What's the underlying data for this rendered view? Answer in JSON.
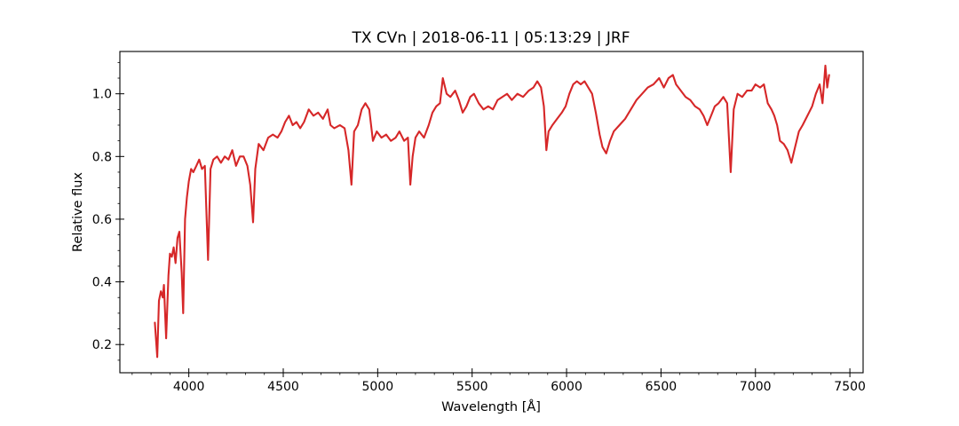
{
  "chart_data": {
    "type": "line",
    "title": "TX CVn | 2018-06-11 | 05:13:29 | JRF",
    "xlabel": "Wavelength [Å]",
    "ylabel": "Relative flux",
    "xlim": [
      3635,
      7570
    ],
    "ylim": [
      0.11,
      1.135
    ],
    "x_ticks": [
      4000,
      4500,
      5000,
      5500,
      6000,
      6500,
      7000,
      7500
    ],
    "y_ticks": [
      0.2,
      0.4,
      0.6,
      0.8,
      1.0
    ],
    "x_tick_labels": [
      "4000",
      "4500",
      "5000",
      "5500",
      "6000",
      "6500",
      "7000",
      "7500"
    ],
    "y_tick_labels": [
      "0.2",
      "0.4",
      "0.6",
      "0.8",
      "1.0"
    ],
    "grid": false,
    "series": [
      {
        "color": "#d62728",
        "points": [
          [
            3820,
            0.27
          ],
          [
            3833,
            0.16
          ],
          [
            3842,
            0.34
          ],
          [
            3852,
            0.37
          ],
          [
            3862,
            0.35
          ],
          [
            3868,
            0.39
          ],
          [
            3880,
            0.22
          ],
          [
            3892,
            0.42
          ],
          [
            3900,
            0.49
          ],
          [
            3910,
            0.48
          ],
          [
            3920,
            0.51
          ],
          [
            3930,
            0.46
          ],
          [
            3940,
            0.54
          ],
          [
            3950,
            0.56
          ],
          [
            3962,
            0.43
          ],
          [
            3970,
            0.3
          ],
          [
            3980,
            0.6
          ],
          [
            3990,
            0.67
          ],
          [
            4000,
            0.72
          ],
          [
            4012,
            0.76
          ],
          [
            4024,
            0.75
          ],
          [
            4040,
            0.77
          ],
          [
            4055,
            0.79
          ],
          [
            4070,
            0.76
          ],
          [
            4085,
            0.77
          ],
          [
            4102,
            0.47
          ],
          [
            4115,
            0.76
          ],
          [
            4130,
            0.79
          ],
          [
            4150,
            0.8
          ],
          [
            4170,
            0.78
          ],
          [
            4190,
            0.8
          ],
          [
            4210,
            0.79
          ],
          [
            4230,
            0.82
          ],
          [
            4250,
            0.77
          ],
          [
            4270,
            0.8
          ],
          [
            4290,
            0.8
          ],
          [
            4310,
            0.77
          ],
          [
            4325,
            0.71
          ],
          [
            4340,
            0.59
          ],
          [
            4352,
            0.76
          ],
          [
            4370,
            0.84
          ],
          [
            4395,
            0.82
          ],
          [
            4420,
            0.86
          ],
          [
            4445,
            0.87
          ],
          [
            4470,
            0.86
          ],
          [
            4490,
            0.88
          ],
          [
            4510,
            0.91
          ],
          [
            4530,
            0.93
          ],
          [
            4550,
            0.9
          ],
          [
            4570,
            0.91
          ],
          [
            4590,
            0.89
          ],
          [
            4610,
            0.91
          ],
          [
            4635,
            0.95
          ],
          [
            4660,
            0.93
          ],
          [
            4685,
            0.94
          ],
          [
            4710,
            0.92
          ],
          [
            4735,
            0.95
          ],
          [
            4750,
            0.9
          ],
          [
            4770,
            0.89
          ],
          [
            4800,
            0.9
          ],
          [
            4825,
            0.89
          ],
          [
            4845,
            0.82
          ],
          [
            4861,
            0.71
          ],
          [
            4875,
            0.88
          ],
          [
            4895,
            0.9
          ],
          [
            4915,
            0.95
          ],
          [
            4935,
            0.97
          ],
          [
            4955,
            0.95
          ],
          [
            4975,
            0.85
          ],
          [
            4995,
            0.88
          ],
          [
            5020,
            0.86
          ],
          [
            5045,
            0.87
          ],
          [
            5070,
            0.85
          ],
          [
            5095,
            0.86
          ],
          [
            5115,
            0.88
          ],
          [
            5140,
            0.85
          ],
          [
            5160,
            0.86
          ],
          [
            5173,
            0.71
          ],
          [
            5185,
            0.8
          ],
          [
            5200,
            0.86
          ],
          [
            5220,
            0.88
          ],
          [
            5245,
            0.86
          ],
          [
            5270,
            0.9
          ],
          [
            5290,
            0.94
          ],
          [
            5310,
            0.96
          ],
          [
            5330,
            0.97
          ],
          [
            5345,
            1.05
          ],
          [
            5365,
            1.0
          ],
          [
            5385,
            0.99
          ],
          [
            5410,
            1.01
          ],
          [
            5430,
            0.98
          ],
          [
            5450,
            0.94
          ],
          [
            5470,
            0.96
          ],
          [
            5490,
            0.99
          ],
          [
            5510,
            1.0
          ],
          [
            5535,
            0.97
          ],
          [
            5560,
            0.95
          ],
          [
            5585,
            0.96
          ],
          [
            5610,
            0.95
          ],
          [
            5635,
            0.98
          ],
          [
            5660,
            0.99
          ],
          [
            5685,
            1.0
          ],
          [
            5710,
            0.98
          ],
          [
            5740,
            1.0
          ],
          [
            5770,
            0.99
          ],
          [
            5800,
            1.01
          ],
          [
            5825,
            1.02
          ],
          [
            5845,
            1.04
          ],
          [
            5865,
            1.02
          ],
          [
            5880,
            0.96
          ],
          [
            5893,
            0.82
          ],
          [
            5905,
            0.88
          ],
          [
            5925,
            0.9
          ],
          [
            5950,
            0.92
          ],
          [
            5975,
            0.94
          ],
          [
            5995,
            0.96
          ],
          [
            6015,
            1.0
          ],
          [
            6035,
            1.03
          ],
          [
            6055,
            1.04
          ],
          [
            6075,
            1.03
          ],
          [
            6095,
            1.04
          ],
          [
            6115,
            1.02
          ],
          [
            6135,
            1.0
          ],
          [
            6155,
            0.94
          ],
          [
            6175,
            0.87
          ],
          [
            6190,
            0.83
          ],
          [
            6210,
            0.81
          ],
          [
            6230,
            0.85
          ],
          [
            6250,
            0.88
          ],
          [
            6280,
            0.9
          ],
          [
            6310,
            0.92
          ],
          [
            6340,
            0.95
          ],
          [
            6370,
            0.98
          ],
          [
            6400,
            1.0
          ],
          [
            6430,
            1.02
          ],
          [
            6460,
            1.03
          ],
          [
            6490,
            1.05
          ],
          [
            6515,
            1.02
          ],
          [
            6540,
            1.05
          ],
          [
            6563,
            1.06
          ],
          [
            6580,
            1.03
          ],
          [
            6605,
            1.01
          ],
          [
            6630,
            0.99
          ],
          [
            6655,
            0.98
          ],
          [
            6680,
            0.96
          ],
          [
            6705,
            0.95
          ],
          [
            6725,
            0.93
          ],
          [
            6745,
            0.9
          ],
          [
            6765,
            0.93
          ],
          [
            6785,
            0.96
          ],
          [
            6805,
            0.97
          ],
          [
            6830,
            0.99
          ],
          [
            6850,
            0.97
          ],
          [
            6869,
            0.75
          ],
          [
            6885,
            0.95
          ],
          [
            6905,
            1.0
          ],
          [
            6930,
            0.99
          ],
          [
            6955,
            1.01
          ],
          [
            6980,
            1.01
          ],
          [
            7000,
            1.03
          ],
          [
            7025,
            1.02
          ],
          [
            7045,
            1.03
          ],
          [
            7065,
            0.97
          ],
          [
            7085,
            0.95
          ],
          [
            7100,
            0.93
          ],
          [
            7115,
            0.9
          ],
          [
            7130,
            0.85
          ],
          [
            7150,
            0.84
          ],
          [
            7170,
            0.82
          ],
          [
            7190,
            0.78
          ],
          [
            7210,
            0.83
          ],
          [
            7230,
            0.88
          ],
          [
            7250,
            0.9
          ],
          [
            7275,
            0.93
          ],
          [
            7300,
            0.96
          ],
          [
            7320,
            1.0
          ],
          [
            7340,
            1.03
          ],
          [
            7355,
            0.97
          ],
          [
            7370,
            1.09
          ],
          [
            7380,
            1.02
          ],
          [
            7390,
            1.06
          ]
        ]
      }
    ]
  }
}
